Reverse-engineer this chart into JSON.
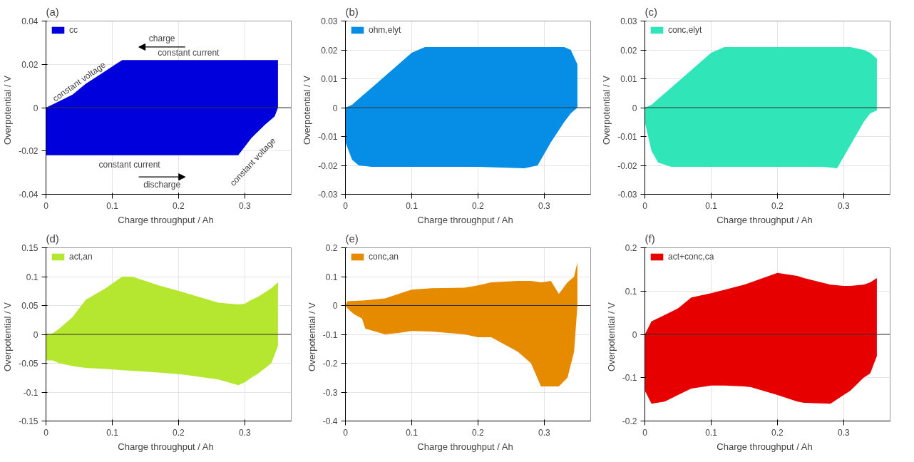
{
  "chart_data": [
    {
      "type": "area",
      "title": "(a)",
      "xlabel": "Charge throughput  /  Ah",
      "ylabel": "Overpotential  /  V",
      "xlim": [
        0,
        0.37
      ],
      "xticks": [
        0,
        0.1,
        0.2,
        0.3
      ],
      "ylim": [
        -0.04,
        0.04
      ],
      "yticks": [
        -0.04,
        -0.02,
        0,
        0.02,
        0.04
      ],
      "grid": true,
      "legend": "top left",
      "series": [
        {
          "name": "cc",
          "color": "#0000dd",
          "x": [
            0,
            0.02,
            0.04,
            0.06,
            0.08,
            0.1,
            0.115,
            0.29,
            0.31,
            0.33,
            0.345,
            0.35
          ],
          "values": [
            0,
            0.003,
            0.006,
            0.011,
            0.015,
            0.019,
            0.022,
            0.022,
            0.022,
            0.022,
            0.022,
            0.022
          ]
        },
        {
          "color": "#0000dd",
          "x": [
            0,
            0.02,
            0.04,
            0.06,
            0.08,
            0.1,
            0.115,
            0.29,
            0.31,
            0.33,
            0.345,
            0.35
          ],
          "values": [
            -0.022,
            -0.022,
            -0.022,
            -0.022,
            -0.022,
            -0.022,
            -0.022,
            -0.022,
            -0.014,
            -0.008,
            -0.004,
            0
          ]
        }
      ],
      "ref_lines": [
        {
          "axis": "y",
          "value": 0,
          "color": "#333333"
        }
      ],
      "annotations": [
        "charge",
        "constant current",
        "constant voltage",
        "constant current",
        "discharge",
        "constant voltage"
      ]
    },
    {
      "type": "area",
      "title": "(b)",
      "xlabel": "Charge throughput  /  Ah",
      "ylabel": "Overpotential  /  V",
      "xlim": [
        0,
        0.37
      ],
      "xticks": [
        0,
        0.1,
        0.2,
        0.3
      ],
      "ylim": [
        -0.03,
        0.03
      ],
      "yticks": [
        -0.03,
        -0.02,
        -0.01,
        0,
        0.01,
        0.02,
        0.03
      ],
      "grid": true,
      "legend": "top left",
      "series": [
        {
          "name": "ohm,elyt",
          "color": "#068ee6",
          "x": [
            0,
            0.01,
            0.02,
            0.04,
            0.06,
            0.08,
            0.1,
            0.12,
            0.2,
            0.27,
            0.29,
            0.31,
            0.33,
            0.34,
            0.35
          ],
          "values": [
            0,
            0.001,
            0.003,
            0.007,
            0.011,
            0.015,
            0.019,
            0.021,
            0.021,
            0.021,
            0.021,
            0.021,
            0.021,
            0.02,
            0.015
          ]
        },
        {
          "color": "#068ee6",
          "x": [
            0,
            0.01,
            0.02,
            0.04,
            0.06,
            0.08,
            0.1,
            0.12,
            0.2,
            0.27,
            0.29,
            0.31,
            0.33,
            0.34,
            0.35
          ],
          "values": [
            -0.012,
            -0.018,
            -0.02,
            -0.0205,
            -0.0205,
            -0.0205,
            -0.0205,
            -0.0205,
            -0.0205,
            -0.021,
            -0.02,
            -0.012,
            -0.005,
            -0.002,
            0
          ]
        }
      ],
      "ref_lines": [
        {
          "axis": "y",
          "value": 0,
          "color": "#333333"
        }
      ]
    },
    {
      "type": "area",
      "title": "(c)",
      "xlabel": "Charge throughput  /  Ah",
      "ylabel": "Overpotential  /  V",
      "xlim": [
        0,
        0.37
      ],
      "xticks": [
        0,
        0.1,
        0.2,
        0.3
      ],
      "ylim": [
        -0.03,
        0.03
      ],
      "yticks": [
        -0.03,
        -0.02,
        -0.01,
        0,
        0.01,
        0.02,
        0.03
      ],
      "grid": true,
      "legend": "top left",
      "series": [
        {
          "name": "conc,elyt",
          "color": "#30e6b9",
          "x": [
            0,
            0.01,
            0.02,
            0.04,
            0.06,
            0.08,
            0.1,
            0.12,
            0.2,
            0.27,
            0.29,
            0.31,
            0.33,
            0.34,
            0.35
          ],
          "values": [
            0,
            0.001,
            0.003,
            0.007,
            0.011,
            0.015,
            0.019,
            0.021,
            0.021,
            0.021,
            0.021,
            0.021,
            0.02,
            0.019,
            0.017
          ]
        },
        {
          "color": "#30e6b9",
          "x": [
            0,
            0.01,
            0.02,
            0.04,
            0.06,
            0.08,
            0.1,
            0.12,
            0.2,
            0.27,
            0.29,
            0.31,
            0.33,
            0.34,
            0.35
          ],
          "values": [
            -0.005,
            -0.015,
            -0.019,
            -0.0205,
            -0.0205,
            -0.0205,
            -0.0205,
            -0.0205,
            -0.0205,
            -0.0205,
            -0.021,
            -0.013,
            -0.005,
            -0.002,
            -0.001
          ]
        }
      ],
      "ref_lines": [
        {
          "axis": "y",
          "value": 0,
          "color": "#333333"
        }
      ]
    },
    {
      "type": "area",
      "title": "(d)",
      "xlabel": "Charge throughput  /  Ah",
      "ylabel": "Overpotential  /  V",
      "xlim": [
        0,
        0.37
      ],
      "xticks": [
        0,
        0.1,
        0.2,
        0.3
      ],
      "ylim": [
        -0.15,
        0.15
      ],
      "yticks": [
        -0.15,
        -0.1,
        -0.05,
        0,
        0.05,
        0.1,
        0.15
      ],
      "grid": true,
      "legend": "top left",
      "series": [
        {
          "name": "act,an",
          "color": "#b5e630",
          "x": [
            0,
            0.01,
            0.02,
            0.04,
            0.06,
            0.09,
            0.115,
            0.13,
            0.17,
            0.21,
            0.26,
            0.29,
            0.3,
            0.31,
            0.32,
            0.34,
            0.35
          ],
          "values": [
            0,
            0.002,
            0.01,
            0.03,
            0.06,
            0.08,
            0.1,
            0.1,
            0.085,
            0.072,
            0.055,
            0.052,
            0.053,
            0.06,
            0.065,
            0.08,
            0.09
          ]
        },
        {
          "color": "#b5e630",
          "x": [
            0,
            0.01,
            0.02,
            0.04,
            0.06,
            0.09,
            0.115,
            0.13,
            0.17,
            0.21,
            0.26,
            0.29,
            0.3,
            0.31,
            0.32,
            0.34,
            0.35
          ],
          "values": [
            -0.045,
            -0.045,
            -0.05,
            -0.055,
            -0.058,
            -0.06,
            -0.062,
            -0.063,
            -0.066,
            -0.07,
            -0.078,
            -0.088,
            -0.083,
            -0.075,
            -0.068,
            -0.05,
            -0.02
          ]
        }
      ],
      "ref_lines": [
        {
          "axis": "y",
          "value": 0,
          "color": "#333333"
        }
      ]
    },
    {
      "type": "area",
      "title": "(e)",
      "xlabel": "Charge throughput  /  Ah",
      "ylabel": "Overpotential  /  V",
      "xlim": [
        0,
        0.37
      ],
      "xticks": [
        0,
        0.1,
        0.2,
        0.3
      ],
      "ylim": [
        -0.4,
        0.2
      ],
      "yticks": [
        -0.4,
        -0.3,
        -0.2,
        -0.1,
        0,
        0.1,
        0.2
      ],
      "grid": true,
      "legend": "top left",
      "series": [
        {
          "name": "conc,an",
          "color": "#e68a00",
          "x": [
            0,
            0.003,
            0.013,
            0.025,
            0.03,
            0.06,
            0.08,
            0.1,
            0.13,
            0.18,
            0.2,
            0.22,
            0.26,
            0.28,
            0.295,
            0.31,
            0.322,
            0.335,
            0.345,
            0.35
          ],
          "values": [
            0,
            0.015,
            0.016,
            0.017,
            0.018,
            0.025,
            0.04,
            0.055,
            0.06,
            0.062,
            0.07,
            0.08,
            0.085,
            0.085,
            0.08,
            0.085,
            0.04,
            0.08,
            0.1,
            0.15
          ]
        },
        {
          "color": "#e68a00",
          "x": [
            0,
            0.003,
            0.013,
            0.025,
            0.03,
            0.06,
            0.08,
            0.1,
            0.13,
            0.18,
            0.2,
            0.22,
            0.26,
            0.28,
            0.295,
            0.31,
            0.322,
            0.335,
            0.345,
            0.35
          ],
          "values": [
            0,
            -0.01,
            -0.03,
            -0.045,
            -0.08,
            -0.1,
            -0.095,
            -0.088,
            -0.09,
            -0.1,
            -0.11,
            -0.11,
            -0.16,
            -0.2,
            -0.28,
            -0.28,
            -0.28,
            -0.25,
            -0.16,
            0
          ]
        }
      ],
      "ref_lines": [
        {
          "axis": "y",
          "value": 0,
          "color": "#333333"
        }
      ]
    },
    {
      "type": "area",
      "title": "(f)",
      "xlabel": "Charge throughput  /  Ah",
      "ylabel": "Overpotential  /  V",
      "xlim": [
        0,
        0.37
      ],
      "xticks": [
        0,
        0.1,
        0.2,
        0.3
      ],
      "ylim": [
        -0.2,
        0.2
      ],
      "yticks": [
        -0.2,
        -0.1,
        0,
        0.1,
        0.2
      ],
      "grid": true,
      "legend": "top left",
      "series": [
        {
          "name": "act+conc,ca",
          "color": "#e60000",
          "x": [
            0,
            0.01,
            0.03,
            0.05,
            0.07,
            0.1,
            0.12,
            0.15,
            0.16,
            0.2,
            0.23,
            0.24,
            0.28,
            0.3,
            0.31,
            0.33,
            0.34,
            0.35
          ],
          "values": [
            0,
            0.03,
            0.045,
            0.06,
            0.085,
            0.095,
            0.103,
            0.115,
            0.12,
            0.142,
            0.135,
            0.13,
            0.115,
            0.112,
            0.112,
            0.115,
            0.12,
            0.13
          ]
        },
        {
          "color": "#e60000",
          "x": [
            0,
            0.01,
            0.03,
            0.05,
            0.07,
            0.1,
            0.12,
            0.15,
            0.16,
            0.2,
            0.23,
            0.24,
            0.28,
            0.3,
            0.31,
            0.33,
            0.34,
            0.35
          ],
          "values": [
            -0.13,
            -0.16,
            -0.155,
            -0.14,
            -0.125,
            -0.118,
            -0.118,
            -0.12,
            -0.122,
            -0.14,
            -0.155,
            -0.158,
            -0.16,
            -0.14,
            -0.13,
            -0.1,
            -0.09,
            -0.05
          ]
        }
      ],
      "ref_lines": [
        {
          "axis": "y",
          "value": 0,
          "color": "#333333"
        }
      ]
    }
  ]
}
